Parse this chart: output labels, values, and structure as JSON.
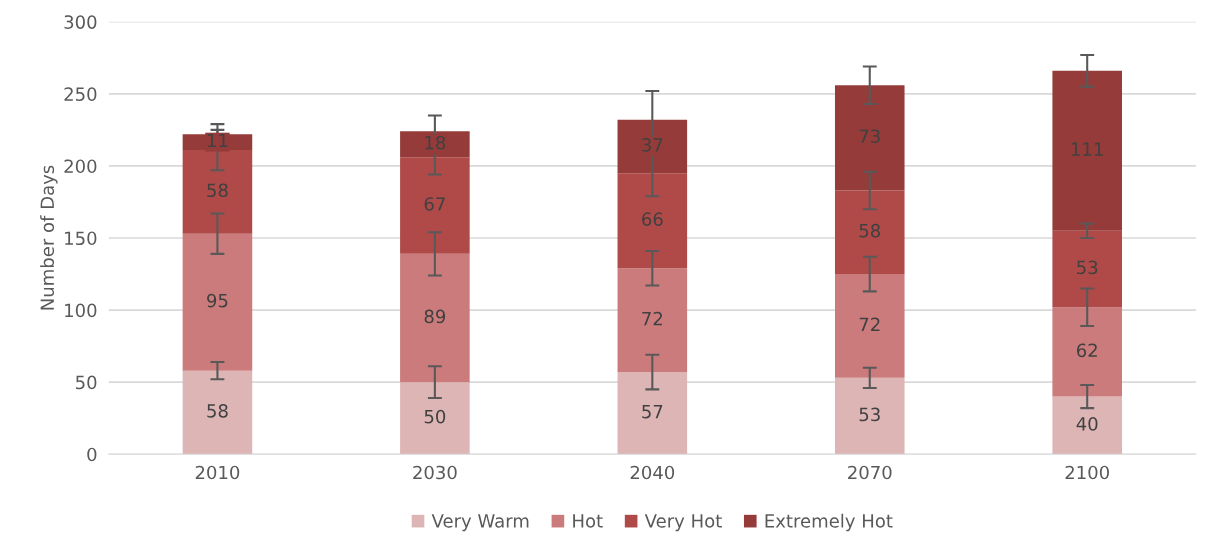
{
  "chart_data": {
    "type": "bar",
    "stacked": true,
    "ylabel": "Number of Days",
    "categories": [
      "2010",
      "2030",
      "2040",
      "2070",
      "2100"
    ],
    "series": [
      {
        "name": "Very Warm",
        "color": "#deb5b5",
        "values": [
          58,
          50,
          57,
          53,
          40
        ],
        "errors": [
          6,
          11,
          12,
          7,
          8
        ]
      },
      {
        "name": "Hot",
        "color": "#cb7b7b",
        "values": [
          95,
          89,
          72,
          72,
          62
        ],
        "errors": [
          14,
          15,
          12,
          12,
          13
        ]
      },
      {
        "name": "Very Hot",
        "color": "#b04a48",
        "values": [
          58,
          67,
          66,
          58,
          53
        ],
        "errors": [
          14,
          12,
          16,
          13,
          5
        ]
      },
      {
        "name": "Extremely Hot",
        "color": "#953b3a",
        "values": [
          11,
          18,
          37,
          73,
          111
        ],
        "errors": [
          7,
          11,
          20,
          13,
          11
        ]
      }
    ],
    "ylim": [
      0,
      300
    ],
    "yticks": [
      0,
      50,
      100,
      150,
      200,
      250,
      300
    ],
    "grid": "y",
    "legend": "bottom",
    "data_labels": true
  }
}
